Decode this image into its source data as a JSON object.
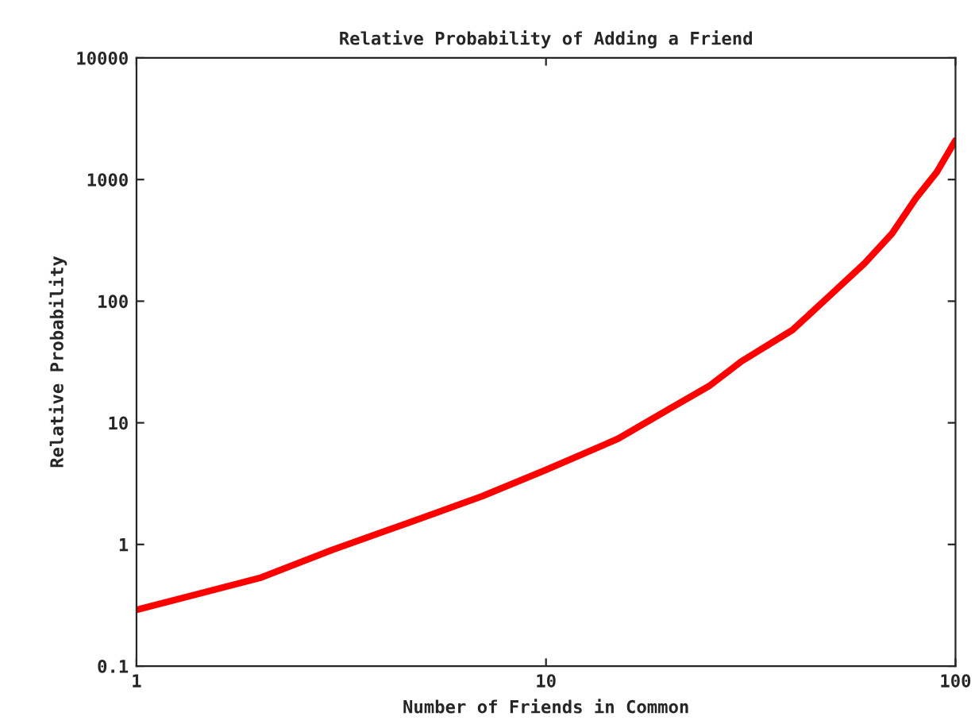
{
  "chart_data": {
    "type": "line",
    "title": "Relative Probability of Adding a Friend",
    "xlabel": "Number of Friends in Common",
    "ylabel": "Relative Probability",
    "log": "xy",
    "grid": false,
    "legend": false,
    "marker": "none",
    "line_style": "solid",
    "x": [
      1,
      2,
      3,
      4,
      5,
      7,
      10,
      15,
      20,
      25,
      30,
      40,
      50,
      60,
      70,
      80,
      90,
      100
    ],
    "series": [
      {
        "color": "#ff0000",
        "values": [
          0.29,
          0.53,
          0.9,
          1.27,
          1.66,
          2.5,
          4.1,
          7.4,
          13,
          20,
          32,
          58,
          116,
          205,
          360,
          700,
          1150,
          2100
        ]
      }
    ],
    "xlim": [
      1,
      100
    ],
    "xticks": [
      1,
      10,
      100
    ],
    "ylim": [
      0.1,
      10000
    ],
    "yticks": [
      0.1,
      1,
      10,
      100,
      1000,
      10000
    ]
  }
}
